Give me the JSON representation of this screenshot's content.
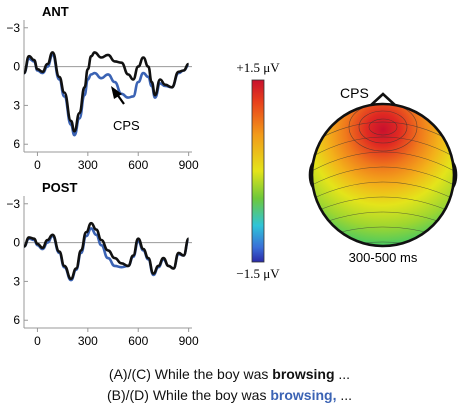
{
  "chart_data": [
    {
      "type": "line",
      "title": "ANT",
      "xlabel": "",
      "ylabel": "",
      "xticks": [
        0,
        300,
        600,
        900
      ],
      "yticks": [
        -3,
        0,
        3,
        6
      ],
      "xlim": [
        -80,
        920
      ],
      "ylim": [
        -3.6,
        6.6
      ],
      "inverted_y": true,
      "annotation": "CPS",
      "series": [
        {
          "color": "#111111",
          "x": [
            -80,
            -50,
            -20,
            0,
            30,
            60,
            90,
            130,
            160,
            200,
            220,
            250,
            280,
            300,
            320,
            340,
            380,
            420,
            460,
            500,
            540,
            570,
            600,
            630,
            660,
            680,
            700,
            730,
            760,
            800,
            840,
            870,
            900
          ],
          "y": [
            0.5,
            -0.8,
            -0.5,
            0.2,
            0.4,
            -0.2,
            -1.1,
            0.8,
            2.0,
            4.2,
            5.0,
            3.6,
            1.6,
            0.2,
            -0.8,
            -1.1,
            -0.7,
            -0.9,
            -0.4,
            -0.3,
            0.6,
            1.0,
            0.0,
            -0.7,
            0.0,
            1.2,
            2.2,
            1.0,
            1.4,
            1.6,
            0.4,
            0.3,
            -0.2
          ]
        },
        {
          "color": "#3b63b4",
          "x": [
            -80,
            -50,
            -20,
            0,
            30,
            60,
            90,
            130,
            160,
            200,
            220,
            250,
            280,
            300,
            320,
            340,
            380,
            420,
            460,
            500,
            540,
            570,
            600,
            630,
            660,
            680,
            700,
            730,
            760,
            800,
            840,
            870,
            900
          ],
          "y": [
            0.5,
            -0.6,
            -0.4,
            0.3,
            0.5,
            0.0,
            -0.9,
            1.0,
            2.3,
            4.5,
            5.3,
            4.0,
            2.2,
            1.0,
            0.6,
            0.5,
            0.9,
            0.6,
            1.2,
            2.1,
            2.4,
            2.3,
            1.2,
            0.5,
            0.8,
            1.5,
            2.4,
            1.3,
            1.5,
            1.6,
            0.5,
            0.3,
            -0.1
          ]
        }
      ]
    },
    {
      "type": "line",
      "title": "POST",
      "xlabel": "",
      "ylabel": "",
      "xticks": [
        0,
        300,
        600,
        900
      ],
      "yticks": [
        -3,
        0,
        3,
        6
      ],
      "xlim": [
        -80,
        920
      ],
      "ylim": [
        -3.6,
        6.6
      ],
      "inverted_y": true,
      "series": [
        {
          "color": "#111111",
          "x": [
            -80,
            -50,
            -20,
            0,
            30,
            60,
            90,
            130,
            160,
            200,
            230,
            260,
            290,
            320,
            350,
            380,
            420,
            460,
            500,
            540,
            570,
            600,
            630,
            660,
            690,
            720,
            750,
            780,
            810,
            840,
            870,
            900
          ],
          "y": [
            0.3,
            -0.4,
            -0.3,
            0.1,
            0.4,
            -0.2,
            -0.6,
            0.7,
            1.8,
            2.8,
            2.0,
            0.6,
            -0.8,
            -1.5,
            -1.0,
            -0.2,
            0.6,
            1.2,
            1.6,
            1.8,
            1.0,
            -0.3,
            0.5,
            1.2,
            2.4,
            1.8,
            1.2,
            1.8,
            2.0,
            0.8,
            1.0,
            -0.3
          ]
        },
        {
          "color": "#3b63b4",
          "x": [
            -80,
            -50,
            -20,
            0,
            30,
            60,
            90,
            130,
            160,
            200,
            230,
            260,
            290,
            320,
            350,
            380,
            420,
            460,
            500,
            540,
            570,
            600,
            630,
            660,
            690,
            720,
            750,
            780,
            810,
            840,
            870,
            900
          ],
          "y": [
            0.3,
            -0.3,
            -0.2,
            0.2,
            0.5,
            0.0,
            -0.5,
            0.8,
            1.9,
            2.9,
            2.1,
            0.8,
            -0.5,
            -1.1,
            -0.6,
            0.2,
            1.2,
            1.8,
            1.9,
            1.8,
            1.1,
            -0.1,
            0.6,
            1.3,
            2.5,
            1.9,
            1.3,
            1.8,
            2.0,
            0.9,
            1.0,
            -0.2
          ]
        }
      ]
    },
    {
      "type": "heatmap",
      "title": "CPS",
      "subtitle": "300-500 ms",
      "colorbar": {
        "max_label": "+1.5 μV",
        "min_label": "−1.5 μV",
        "range": [
          -1.5,
          1.5
        ]
      },
      "colors": {
        "low": "#2a2aa8",
        "mid_low": "#2fc4d8",
        "mid": "#e4e41a",
        "mid_high": "#f29a1a",
        "high": "#c8102e"
      }
    }
  ],
  "caption": {
    "line1_prefix": "(A)/(C) While the boy was ",
    "line1_word": "browsing",
    "line1_suffix": "  ...",
    "line2_prefix": "(B)/(D) While the boy was ",
    "line2_word": "browsing,",
    "line2_suffix": " ..."
  }
}
